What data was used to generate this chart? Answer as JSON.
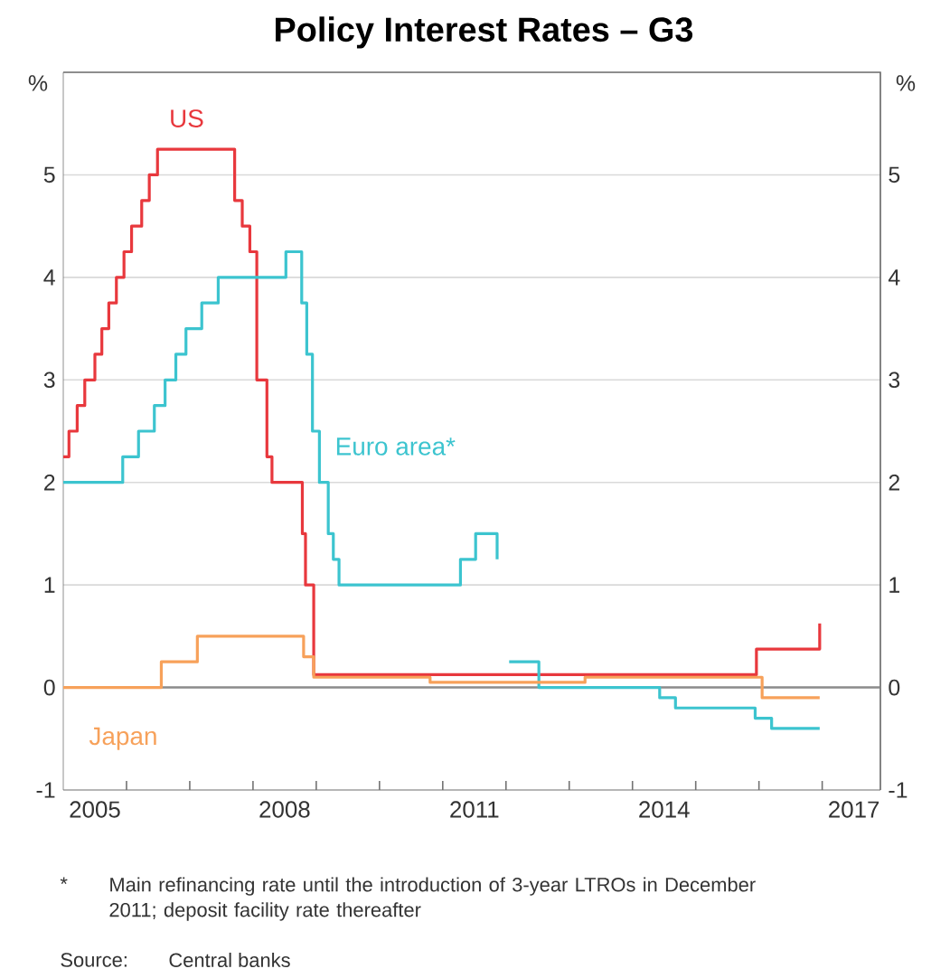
{
  "chart_data": {
    "type": "step",
    "title": "Policy Interest Rates – G3",
    "ylabel": "%",
    "y2label": "%",
    "xlim": [
      2005,
      2017.92
    ],
    "xticks": [
      {
        "value": 2005.5,
        "label": "2005"
      },
      {
        "value": 2006,
        "label": null
      },
      {
        "value": 2007,
        "label": null
      },
      {
        "value": 2008,
        "label": null
      },
      {
        "value": 2008.5,
        "label": "2008"
      },
      {
        "value": 2009,
        "label": null
      },
      {
        "value": 2010,
        "label": null
      },
      {
        "value": 2011,
        "label": null
      },
      {
        "value": 2011.5,
        "label": "2011"
      },
      {
        "value": 2012,
        "label": null
      },
      {
        "value": 2013,
        "label": null
      },
      {
        "value": 2014,
        "label": null
      },
      {
        "value": 2014.5,
        "label": "2014"
      },
      {
        "value": 2015,
        "label": null
      },
      {
        "value": 2016,
        "label": null
      },
      {
        "value": 2017,
        "label": null
      },
      {
        "value": 2017.5,
        "label": "2017"
      }
    ],
    "ylim": [
      -1,
      6
    ],
    "yticks": [
      -1,
      0,
      1,
      2,
      3,
      4,
      5,
      {
        "value": 6,
        "label": null
      }
    ],
    "y2lim": [
      -1,
      6
    ],
    "y2ticks": [
      -1,
      0,
      1,
      2,
      3,
      4,
      5
    ],
    "grid": "y",
    "ref_lines": [
      {
        "axis": "y",
        "value": 0,
        "color": "#8c8c8c"
      }
    ],
    "series": [
      {
        "name": "US",
        "color": "#e8383d",
        "x": [
          2005.0,
          2005.09,
          2005.22,
          2005.34,
          2005.5,
          2005.61,
          2005.72,
          2005.84,
          2005.96,
          2006.08,
          2006.24,
          2006.36,
          2006.49,
          2007.71,
          2007.83,
          2007.95,
          2008.06,
          2008.22,
          2008.3,
          2008.78,
          2008.83,
          2008.96,
          2015.96,
          2016.96
        ],
        "values": [
          2.25,
          2.5,
          2.75,
          3.0,
          3.25,
          3.5,
          3.75,
          4.0,
          4.25,
          4.5,
          4.75,
          5.0,
          5.25,
          4.75,
          4.5,
          4.25,
          3.0,
          2.25,
          2.0,
          1.5,
          1.0,
          0.125,
          0.375,
          0.625
        ]
      },
      {
        "name": "Euro area*",
        "color": "#3cc4cf",
        "x": [
          2005.0,
          2005.94,
          2006.19,
          2006.44,
          2006.61,
          2006.78,
          2006.94,
          2007.19,
          2007.45,
          2008.52,
          2008.77,
          2008.85,
          2008.94,
          2009.05,
          2009.19,
          2009.27,
          2009.36,
          2011.28,
          2011.52,
          2011.86,
          2011.95,
          2012.05,
          2012.52,
          2014.43,
          2014.68,
          2015.94,
          2016.2,
          2016.96
        ],
        "values": [
          2.0,
          2.25,
          2.5,
          2.75,
          3.0,
          3.25,
          3.5,
          3.75,
          4.0,
          4.25,
          3.75,
          3.25,
          2.5,
          2.0,
          1.5,
          1.25,
          1.0,
          1.25,
          1.5,
          1.25,
          null,
          0.25,
          0.0,
          -0.1,
          -0.2,
          -0.3,
          -0.4,
          -0.4
        ]
      },
      {
        "name": "Japan",
        "color": "#f7a15a",
        "x": [
          2005.0,
          2006.55,
          2007.12,
          2008.8,
          2008.96,
          2010.8,
          2013.25,
          2016.05,
          2016.96
        ],
        "values": [
          0.0,
          0.25,
          0.5,
          0.3,
          0.1,
          0.05,
          0.1,
          -0.1,
          -0.1
        ]
      }
    ],
    "annotations": [
      "*",
      "Main refinancing rate until the introduction of 3-year LTROs in December 2011; deposit facility rate thereafter",
      "Source:",
      "Central banks"
    ]
  }
}
